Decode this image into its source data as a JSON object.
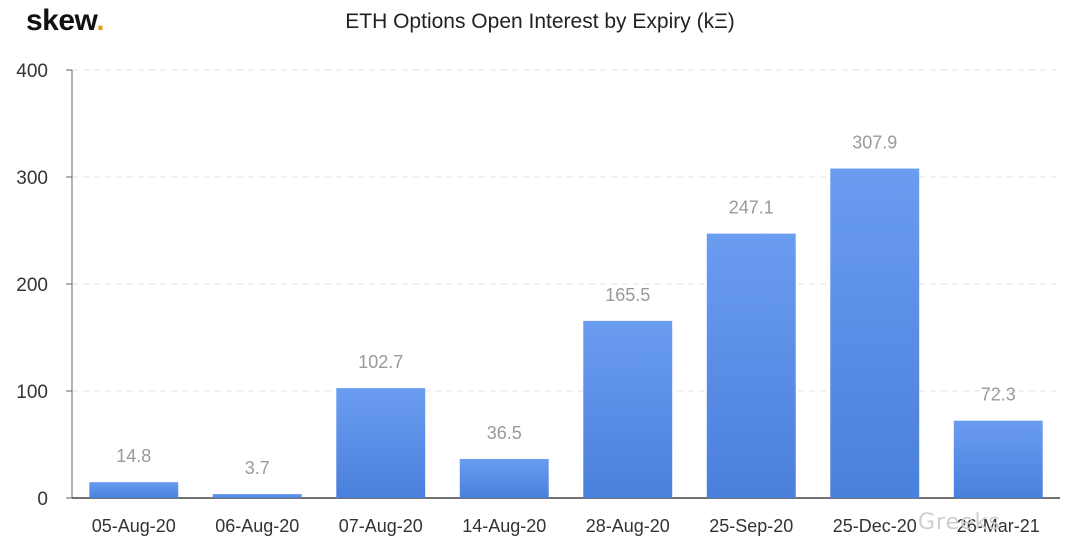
{
  "brand": {
    "name": "skew",
    "dot": "."
  },
  "chart_data": {
    "type": "bar",
    "title": "ETH Options Open Interest by Expiry (kΞ)",
    "xlabel": "",
    "ylabel": "",
    "categories": [
      "05-Aug-20",
      "06-Aug-20",
      "07-Aug-20",
      "14-Aug-20",
      "28-Aug-20",
      "25-Sep-20",
      "25-Dec-20",
      "26-Mar-21"
    ],
    "series": [
      {
        "values": [
          14.8,
          3.7,
          102.7,
          36.5,
          165.5,
          247.1,
          307.9,
          72.3
        ]
      }
    ],
    "data_labels": [
      "14.8",
      "3.7",
      "102.7",
      "36.5",
      "165.5",
      "247.1",
      "307.9",
      "72.3"
    ],
    "ylim": [
      0,
      400
    ],
    "yticks": [
      0,
      100,
      200,
      300,
      400
    ],
    "grid": true,
    "legend": "none",
    "colors": {
      "bar_top": "#6a9df0",
      "bar_bottom": "#4a7fdc",
      "grid": "#e3e3e3",
      "label": "#999999",
      "tick": "#333333"
    }
  },
  "watermark": {
    "text": "Greeks"
  }
}
